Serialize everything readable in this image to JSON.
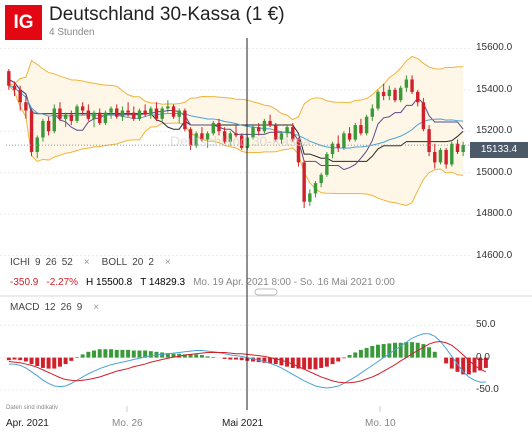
{
  "header": {
    "logo": "IG",
    "title": "Deutschland 30-Kassa (1 €)",
    "subtitle": "4 Stunden"
  },
  "watermark": "Deutschland 30-Kassa",
  "price_badge": "15133.4",
  "indicators": {
    "ichi": {
      "name": "ICHI",
      "p1": "9",
      "p2": "26",
      "p3": "52"
    },
    "boll": {
      "name": "BOLL",
      "p1": "20",
      "p2": "2"
    },
    "close_icon": "×"
  },
  "stats": {
    "change": "-350.9",
    "change_pct": "-2.27%",
    "high": "H 15500.8",
    "low": "T 14829.3",
    "range": "Mo. 19 Apr. 2021 8:00 - So. 16 Mai 2021 0:00"
  },
  "macd_label": {
    "name": "MACD",
    "p1": "12",
    "p2": "26",
    "p3": "9"
  },
  "disclaimer": "Daten sind indikativ",
  "colors": {
    "up": "#3a9a3a",
    "down": "#d0202b",
    "boll": "#f0b43c",
    "boll_fill": "#fef6e6",
    "ichi_tenkan": "#5a4a8c",
    "ichi_kijun": "#2a2a2a",
    "badge": "#4b5968",
    "macd": "#4aa3d6",
    "signal": "#d0202b",
    "logo": "#e30613"
  },
  "chart_data": [
    {
      "type": "candlestick",
      "title": "Deutschland 30-Kassa (1 €)",
      "y_ticks": [
        15600.0,
        15400.0,
        15200.0,
        15000.0,
        14800.0,
        14600.0
      ],
      "y_tick_labels": [
        "15600.0",
        "15400.0",
        "15200.0",
        "15000.0",
        "14800.0",
        "14600.0"
      ],
      "ylim": [
        14550,
        15650
      ],
      "x_labels": [
        "Apr. 2021",
        "Mo. 26",
        "Mai 2021",
        "Mo. 10"
      ],
      "current_price": 15133.4,
      "overlays": [
        "Ichimoku (9, 26, 52)",
        "Bollinger Bands (20, 2)"
      ],
      "candles": [
        [
          15490,
          15500,
          15400,
          15420
        ],
        [
          15420,
          15440,
          15370,
          15400
        ],
        [
          15400,
          15420,
          15300,
          15340
        ],
        [
          15340,
          15370,
          15260,
          15300
        ],
        [
          15300,
          15310,
          15080,
          15100
        ],
        [
          15100,
          15180,
          15070,
          15170
        ],
        [
          15170,
          15260,
          15150,
          15250
        ],
        [
          15250,
          15270,
          15180,
          15200
        ],
        [
          15200,
          15330,
          15190,
          15310
        ],
        [
          15310,
          15340,
          15250,
          15260
        ],
        [
          15260,
          15290,
          15220,
          15280
        ],
        [
          15280,
          15300,
          15230,
          15250
        ],
        [
          15250,
          15330,
          15240,
          15320
        ],
        [
          15320,
          15340,
          15280,
          15300
        ],
        [
          15300,
          15330,
          15250,
          15260
        ],
        [
          15260,
          15300,
          15220,
          15290
        ],
        [
          15290,
          15310,
          15230,
          15240
        ],
        [
          15240,
          15300,
          15230,
          15290
        ],
        [
          15290,
          15320,
          15260,
          15310
        ],
        [
          15310,
          15330,
          15260,
          15270
        ],
        [
          15270,
          15320,
          15250,
          15300
        ],
        [
          15300,
          15340,
          15270,
          15290
        ],
        [
          15290,
          15320,
          15250,
          15260
        ],
        [
          15260,
          15310,
          15250,
          15300
        ],
        [
          15300,
          15330,
          15270,
          15280
        ],
        [
          15280,
          15320,
          15260,
          15310
        ],
        [
          15310,
          15340,
          15250,
          15260
        ],
        [
          15260,
          15320,
          15250,
          15310
        ],
        [
          15310,
          15350,
          15290,
          15320
        ],
        [
          15320,
          15330,
          15260,
          15270
        ],
        [
          15270,
          15310,
          15240,
          15300
        ],
        [
          15300,
          15310,
          15200,
          15210
        ],
        [
          15210,
          15220,
          15110,
          15130
        ],
        [
          15130,
          15200,
          15120,
          15190
        ],
        [
          15190,
          15220,
          15150,
          15160
        ],
        [
          15160,
          15200,
          15120,
          15190
        ],
        [
          15190,
          15250,
          15180,
          15240
        ],
        [
          15240,
          15260,
          15180,
          15200
        ],
        [
          15200,
          15220,
          15140,
          15150
        ],
        [
          15150,
          15200,
          15130,
          15190
        ],
        [
          15190,
          15230,
          15170,
          15180
        ],
        [
          15180,
          15190,
          15110,
          15120
        ],
        [
          15120,
          15180,
          15110,
          15170
        ],
        [
          15170,
          15230,
          15160,
          15220
        ],
        [
          15220,
          15240,
          15180,
          15200
        ],
        [
          15200,
          15260,
          15190,
          15250
        ],
        [
          15250,
          15280,
          15220,
          15230
        ],
        [
          15230,
          15240,
          15150,
          15160
        ],
        [
          15160,
          15200,
          15140,
          15190
        ],
        [
          15190,
          15230,
          15170,
          15220
        ],
        [
          15220,
          15240,
          15150,
          15160
        ],
        [
          15160,
          15170,
          15030,
          15050
        ],
        [
          15050,
          15060,
          14830,
          14860
        ],
        [
          14860,
          14920,
          14840,
          14900
        ],
        [
          14900,
          14960,
          14880,
          14950
        ],
        [
          14950,
          15000,
          14930,
          14990
        ],
        [
          14990,
          15100,
          14980,
          15090
        ],
        [
          15090,
          15150,
          15070,
          15140
        ],
        [
          15140,
          15180,
          15100,
          15120
        ],
        [
          15120,
          15200,
          15110,
          15190
        ],
        [
          15190,
          15220,
          15150,
          15160
        ],
        [
          15160,
          15240,
          15150,
          15230
        ],
        [
          15230,
          15260,
          15180,
          15190
        ],
        [
          15190,
          15280,
          15180,
          15270
        ],
        [
          15270,
          15330,
          15250,
          15310
        ],
        [
          15310,
          15400,
          15300,
          15390
        ],
        [
          15390,
          15430,
          15350,
          15370
        ],
        [
          15370,
          15420,
          15350,
          15400
        ],
        [
          15400,
          15410,
          15340,
          15350
        ],
        [
          15350,
          15420,
          15340,
          15410
        ],
        [
          15410,
          15470,
          15390,
          15450
        ],
        [
          15450,
          15470,
          15380,
          15390
        ],
        [
          15390,
          15400,
          15320,
          15340
        ],
        [
          15340,
          15360,
          15200,
          15210
        ],
        [
          15210,
          15230,
          15080,
          15100
        ],
        [
          15100,
          15140,
          15020,
          15050
        ],
        [
          15050,
          15120,
          15040,
          15110
        ],
        [
          15110,
          15120,
          15020,
          15040
        ],
        [
          15040,
          15150,
          15030,
          15140
        ],
        [
          15140,
          15160,
          15090,
          15100
        ],
        [
          15100,
          15150,
          15080,
          15133.4
        ]
      ]
    },
    {
      "type": "bar",
      "title": "MACD (12, 26, 9)",
      "y_ticks": [
        50.0,
        0.0,
        -50.0
      ],
      "y_tick_labels": [
        "50.0",
        "0.0",
        "-50.0"
      ],
      "ylim": [
        -75,
        80
      ],
      "series": [
        {
          "name": "MACD",
          "values": [
            -10,
            -10,
            -12,
            -16,
            -22,
            -28,
            -35,
            -40,
            -44,
            -45,
            -44,
            -40,
            -35,
            -30,
            -25,
            -21,
            -17,
            -14,
            -11,
            -9,
            -7,
            -5,
            -3,
            -1,
            1,
            3,
            4,
            5,
            6,
            7,
            8,
            9,
            10,
            11,
            11,
            10,
            9,
            8,
            6,
            4,
            3,
            2,
            0,
            -2,
            -4,
            -6,
            -9,
            -12,
            -16,
            -21,
            -26,
            -31,
            -36,
            -40,
            -44,
            -46,
            -47,
            -46,
            -44,
            -40,
            -35,
            -30,
            -24,
            -18,
            -12,
            -6,
            0,
            6,
            12,
            18,
            24,
            30,
            34,
            37,
            37,
            33,
            25,
            14,
            2,
            -10,
            -22,
            -30,
            -35,
            -38,
            -38
          ]
        },
        {
          "name": "Signal",
          "values": [
            -6,
            -7,
            -8,
            -10,
            -12,
            -15,
            -19,
            -23,
            -27,
            -31,
            -34,
            -35,
            -36,
            -35,
            -34,
            -32,
            -30,
            -27,
            -24,
            -21,
            -19,
            -17,
            -14,
            -12,
            -10,
            -7,
            -5,
            -3,
            -1,
            1,
            2,
            4,
            5,
            6,
            7,
            8,
            8,
            8,
            8,
            7,
            6,
            6,
            5,
            4,
            3,
            2,
            0,
            -2,
            -4,
            -7,
            -10,
            -14,
            -18,
            -22,
            -26,
            -30,
            -33,
            -36,
            -38,
            -39,
            -39,
            -38,
            -36,
            -33,
            -30,
            -26,
            -21,
            -16,
            -11,
            -5,
            0,
            6,
            11,
            16,
            21,
            24,
            25,
            23,
            19,
            12,
            4,
            -4,
            -12,
            -18,
            -22
          ]
        },
        {
          "name": "Histogram",
          "values": [
            -4,
            -3,
            -4,
            -6,
            -10,
            -13,
            -16,
            -17,
            -17,
            -14,
            -10,
            -5,
            1,
            5,
            9,
            11,
            13,
            13,
            13,
            12,
            12,
            12,
            11,
            11,
            11,
            10,
            9,
            8,
            7,
            6,
            6,
            5,
            5,
            5,
            4,
            2,
            1,
            0,
            -2,
            -3,
            -3,
            -4,
            -5,
            -6,
            -7,
            -8,
            -9,
            -10,
            -12,
            -14,
            -16,
            -17,
            -18,
            -18,
            -18,
            -16,
            -14,
            -10,
            -6,
            -1,
            4,
            8,
            12,
            15,
            18,
            20,
            21,
            22,
            23,
            23,
            24,
            24,
            23,
            21,
            16,
            9,
            0,
            -9,
            -17,
            -22,
            -26,
            -26,
            -23,
            -20,
            -16
          ]
        }
      ]
    }
  ]
}
